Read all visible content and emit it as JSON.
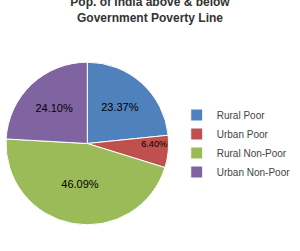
{
  "chart_data": {
    "type": "pie",
    "title": "Pop. of India above & below Government Poverty Line",
    "categories": [
      "Rural Poor",
      "Urban Poor",
      "Rural Non-Poor",
      "Urban Non-Poor"
    ],
    "values": [
      23.37,
      6.4,
      46.09,
      24.1
    ],
    "value_labels": [
      "23.37%",
      "6.40%",
      "46.09%",
      "24.10%"
    ],
    "colors": [
      "#4f81bd",
      "#c0504d",
      "#9bbb59",
      "#8064a2"
    ],
    "data_labels": true,
    "legend": "right"
  }
}
